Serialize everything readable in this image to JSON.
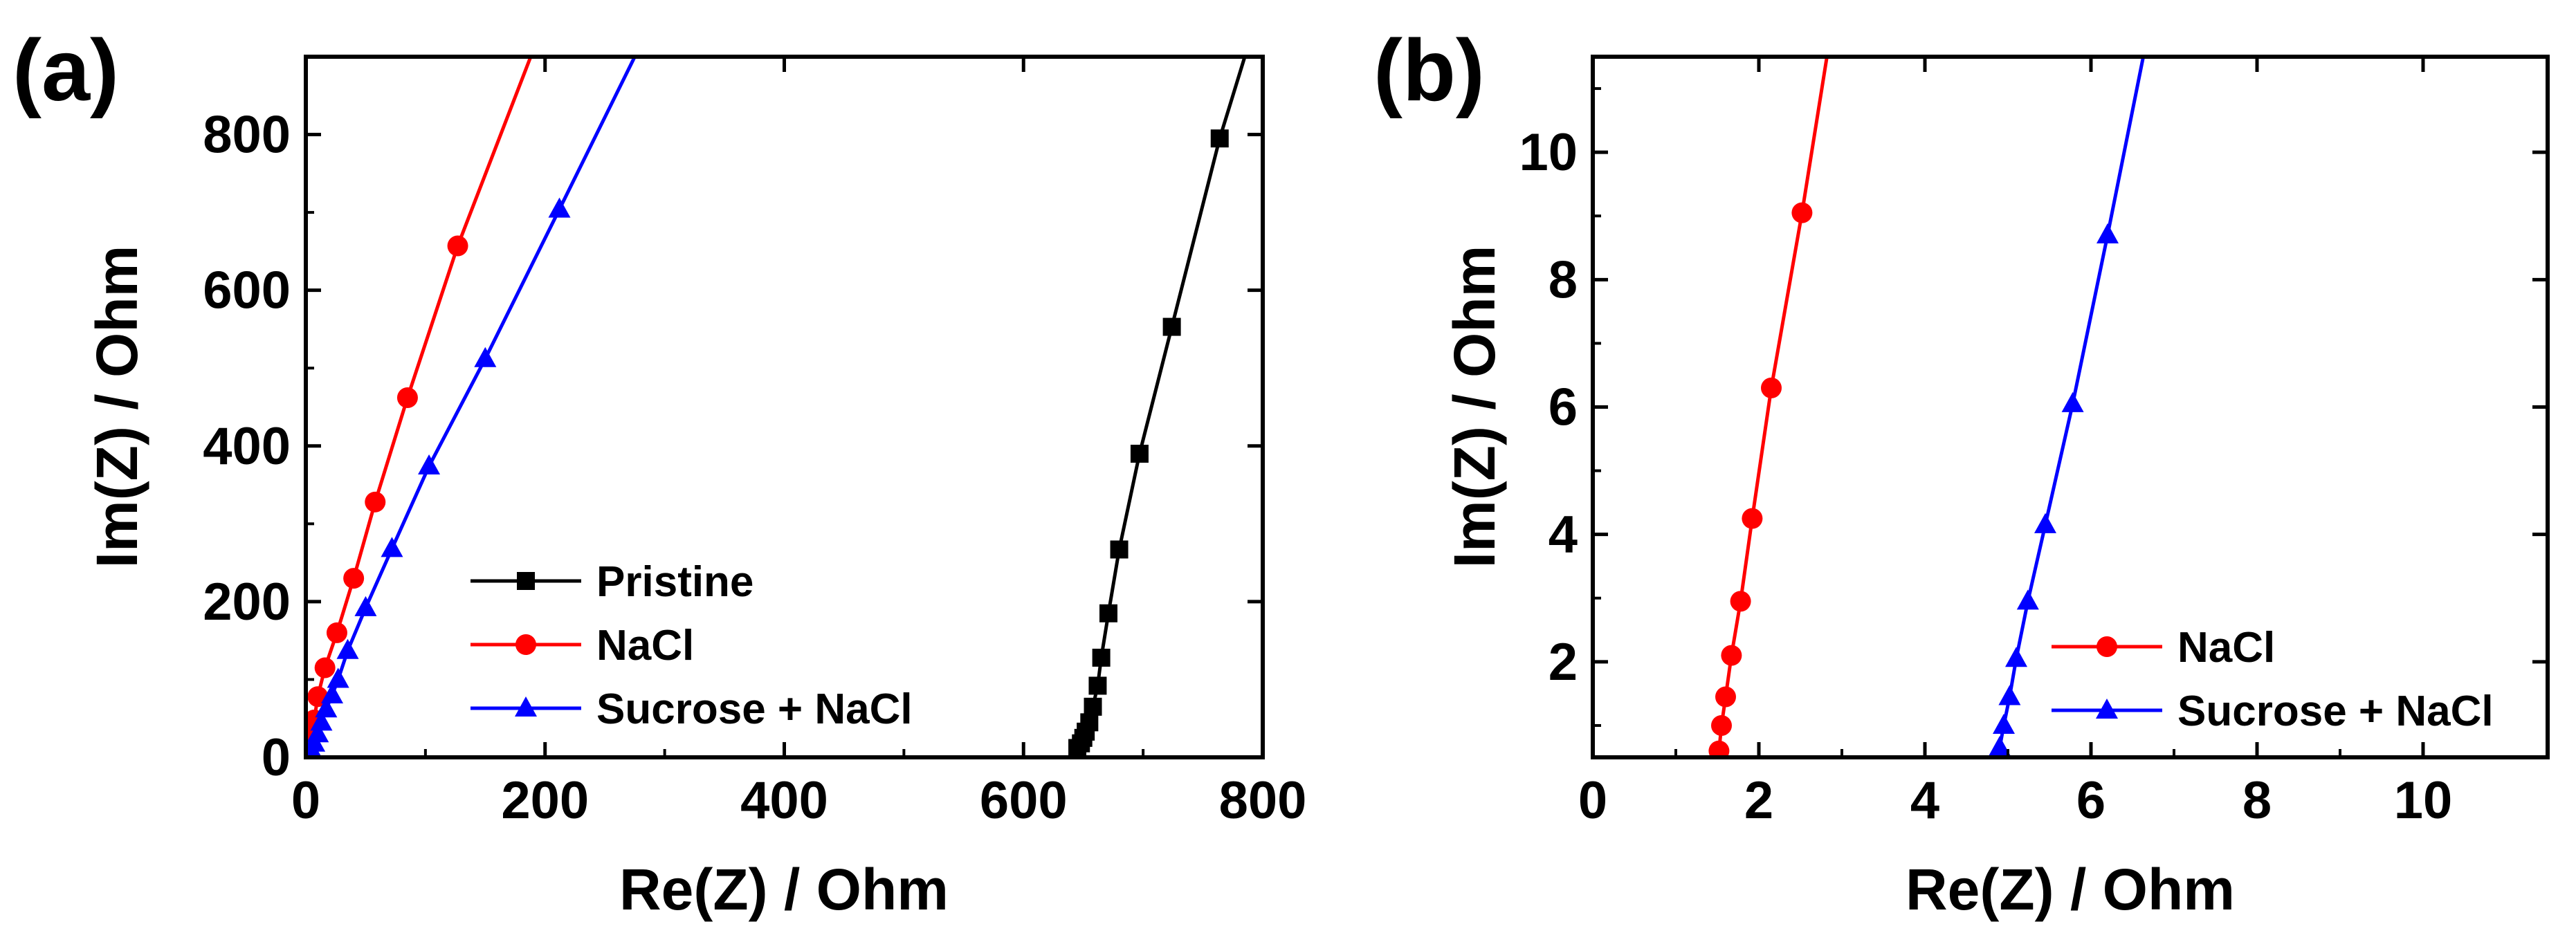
{
  "chart_data": [
    {
      "panel_label": "(a)",
      "type": "line",
      "xlabel": "Re(Z) / Ohm",
      "ylabel": "Im(Z) / Ohm",
      "xlim": [
        0,
        800
      ],
      "ylim": [
        0,
        900
      ],
      "xticks": [
        0,
        200,
        400,
        600,
        800
      ],
      "yticks": [
        0,
        200,
        400,
        600,
        800
      ],
      "xtick_labels": [
        "0",
        "200",
        "400",
        "600",
        "800"
      ],
      "ytick_labels": [
        "0",
        "200",
        "400",
        "600",
        "800"
      ],
      "legend_position": "lower-center",
      "series": [
        {
          "name": "Pristine",
          "color": "#000000",
          "marker": "square",
          "points": [
            [
              645,
              12
            ],
            [
              648,
              18
            ],
            [
              650,
              25
            ],
            [
              652,
              33
            ],
            [
              655,
              45
            ],
            [
              658,
              65
            ],
            [
              662,
              92
            ],
            [
              665,
              128
            ],
            [
              671,
              185
            ],
            [
              680,
              267
            ],
            [
              697,
              390
            ],
            [
              724,
              553
            ],
            [
              764,
              795
            ]
          ],
          "line_ends": [
            [
              640,
              0
            ],
            [
              785,
              900
            ]
          ]
        },
        {
          "name": "NaCl",
          "color": "#ff0000",
          "marker": "circle",
          "points": [
            [
              2,
              8
            ],
            [
              3,
              18
            ],
            [
              5,
              32
            ],
            [
              7,
              48
            ],
            [
              10,
              78
            ],
            [
              16,
              115
            ],
            [
              26,
              160
            ],
            [
              40,
              230
            ],
            [
              58,
              328
            ],
            [
              85,
              462
            ],
            [
              127,
              657
            ]
          ],
          "line_ends": [
            [
              0,
              0
            ],
            [
              188,
              900
            ]
          ]
        },
        {
          "name": "Sucrose + NaCl",
          "color": "#0000ff",
          "marker": "triangle",
          "points": [
            [
              5,
              8
            ],
            [
              7,
              18
            ],
            [
              10,
              30
            ],
            [
              13,
              45
            ],
            [
              17,
              62
            ],
            [
              22,
              80
            ],
            [
              27,
              100
            ],
            [
              35,
              137
            ],
            [
              50,
              192
            ],
            [
              72,
              268
            ],
            [
              103,
              374
            ],
            [
              150,
              512
            ],
            [
              212,
              704
            ]
          ],
          "line_ends": [
            [
              0,
              0
            ],
            [
              275,
              900
            ]
          ]
        }
      ]
    },
    {
      "panel_label": "(b)",
      "type": "line",
      "xlabel": "Re(Z) / Ohm",
      "ylabel": "Im(Z) / Ohm",
      "xlim": [
        0,
        11.5
      ],
      "ylim": [
        0.5,
        11.5
      ],
      "xticks": [
        0,
        2,
        4,
        6,
        8,
        10
      ],
      "yticks": [
        2,
        4,
        6,
        8,
        10
      ],
      "xtick_labels": [
        "0",
        "2",
        "4",
        "6",
        "8",
        "10"
      ],
      "ytick_labels": [
        "2",
        "4",
        "6",
        "8",
        "10"
      ],
      "legend_position": "lower-right",
      "series": [
        {
          "name": "NaCl",
          "color": "#ff0000",
          "marker": "circle",
          "points": [
            [
              1.52,
              0.6
            ],
            [
              1.55,
              1.0
            ],
            [
              1.6,
              1.45
            ],
            [
              1.67,
              2.1
            ],
            [
              1.78,
              2.95
            ],
            [
              1.92,
              4.25
            ],
            [
              2.15,
              6.3
            ],
            [
              2.52,
              9.05
            ]
          ],
          "line_ends": [
            [
              1.5,
              0.5
            ],
            [
              2.82,
              11.5
            ]
          ]
        },
        {
          "name": "Sucrose + NaCl",
          "color": "#0000ff",
          "marker": "triangle",
          "points": [
            [
              4.9,
              0.65
            ],
            [
              4.95,
              1.0
            ],
            [
              5.02,
              1.45
            ],
            [
              5.1,
              2.05
            ],
            [
              5.24,
              2.95
            ],
            [
              5.45,
              4.15
            ],
            [
              5.78,
              6.05
            ],
            [
              6.2,
              8.7
            ]
          ],
          "line_ends": [
            [
              4.85,
              0.5
            ],
            [
              6.63,
              11.5
            ]
          ]
        }
      ]
    }
  ]
}
